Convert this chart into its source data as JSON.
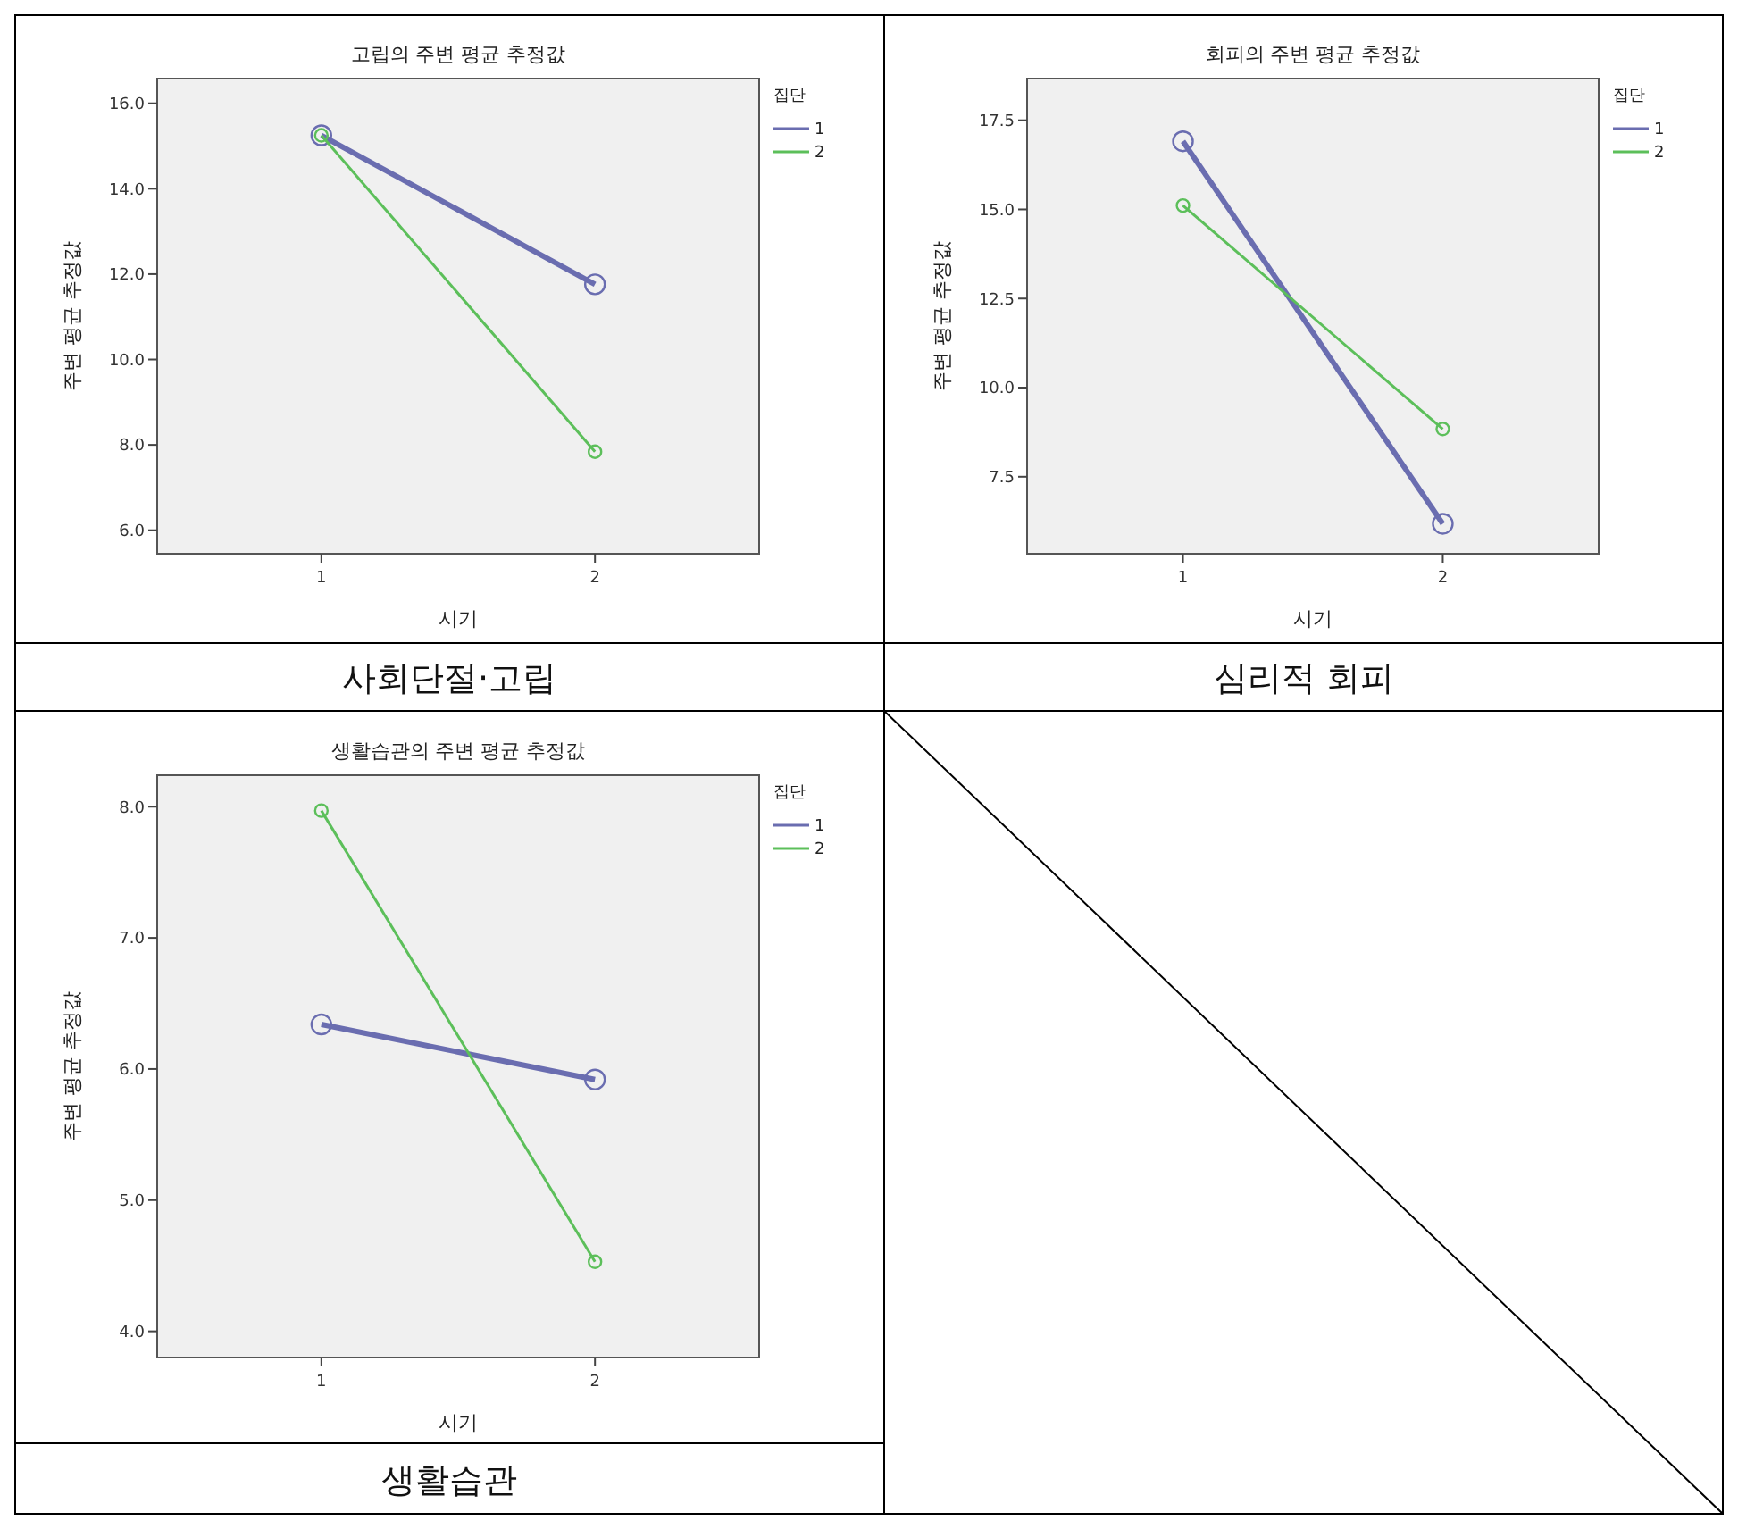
{
  "chart_data": [
    {
      "type": "line",
      "title": "고립의 주변 평균 추정값",
      "xlabel": "시기",
      "ylabel": "주변 평균 추정값",
      "legend_title": "집단",
      "legend": "right",
      "marker": "circle",
      "categories": [
        "1",
        "2"
      ],
      "ylim": [
        5.45,
        16.58
      ],
      "yticks": [
        {
          "value": 6,
          "label": "6.0"
        },
        {
          "value": 8,
          "label": "8.0"
        },
        {
          "value": 10,
          "label": "10.0"
        },
        {
          "value": 12,
          "label": "12.0"
        },
        {
          "value": 14,
          "label": "14.0"
        },
        {
          "value": 16,
          "label": "16.0"
        }
      ],
      "annotations": [
        "사회단절·고립"
      ],
      "series": [
        {
          "name": "1",
          "color": "#6a6db0",
          "values": [
            15.25,
            11.76
          ]
        },
        {
          "name": "2",
          "color": "#5cbf5a",
          "values": [
            15.25,
            7.84
          ]
        }
      ]
    },
    {
      "type": "line",
      "title": "회피의 주변 평균 추정값",
      "xlabel": "시기",
      "ylabel": "주변 평균 추정값",
      "legend_title": "집단",
      "legend": "right",
      "marker": "circle",
      "categories": [
        "1",
        "2"
      ],
      "ylim": [
        5.34,
        18.67
      ],
      "yticks": [
        7.5,
        {
          "value": 10,
          "label": "10.0"
        },
        12.5,
        {
          "value": 15,
          "label": "15.0"
        },
        17.5
      ],
      "annotations": [
        "심리적 회피"
      ],
      "series": [
        {
          "name": "1",
          "color": "#6a6db0",
          "values": [
            16.91,
            6.18
          ]
        },
        {
          "name": "2",
          "color": "#5cbf5a",
          "values": [
            15.11,
            8.84
          ]
        }
      ]
    },
    {
      "type": "line",
      "title": "생활습관의 주변 평균 추정값",
      "xlabel": "시기",
      "ylabel": "주변 평균 추정값",
      "legend_title": "집단",
      "legend": "right",
      "marker": "circle",
      "categories": [
        "1",
        "2"
      ],
      "ylim": [
        3.8,
        8.24
      ],
      "yticks": [
        {
          "value": 4,
          "label": "4.0"
        },
        {
          "value": 5,
          "label": "5.0"
        },
        {
          "value": 6,
          "label": "6.0"
        },
        {
          "value": 7,
          "label": "7.0"
        },
        {
          "value": 8,
          "label": "8.0"
        }
      ],
      "annotations": [
        "생활습관"
      ],
      "series": [
        {
          "name": "1",
          "color": "#6a6db0",
          "values": [
            6.34,
            5.92
          ]
        },
        {
          "name": "2",
          "color": "#5cbf5a",
          "values": [
            7.97,
            4.53
          ]
        }
      ]
    }
  ]
}
